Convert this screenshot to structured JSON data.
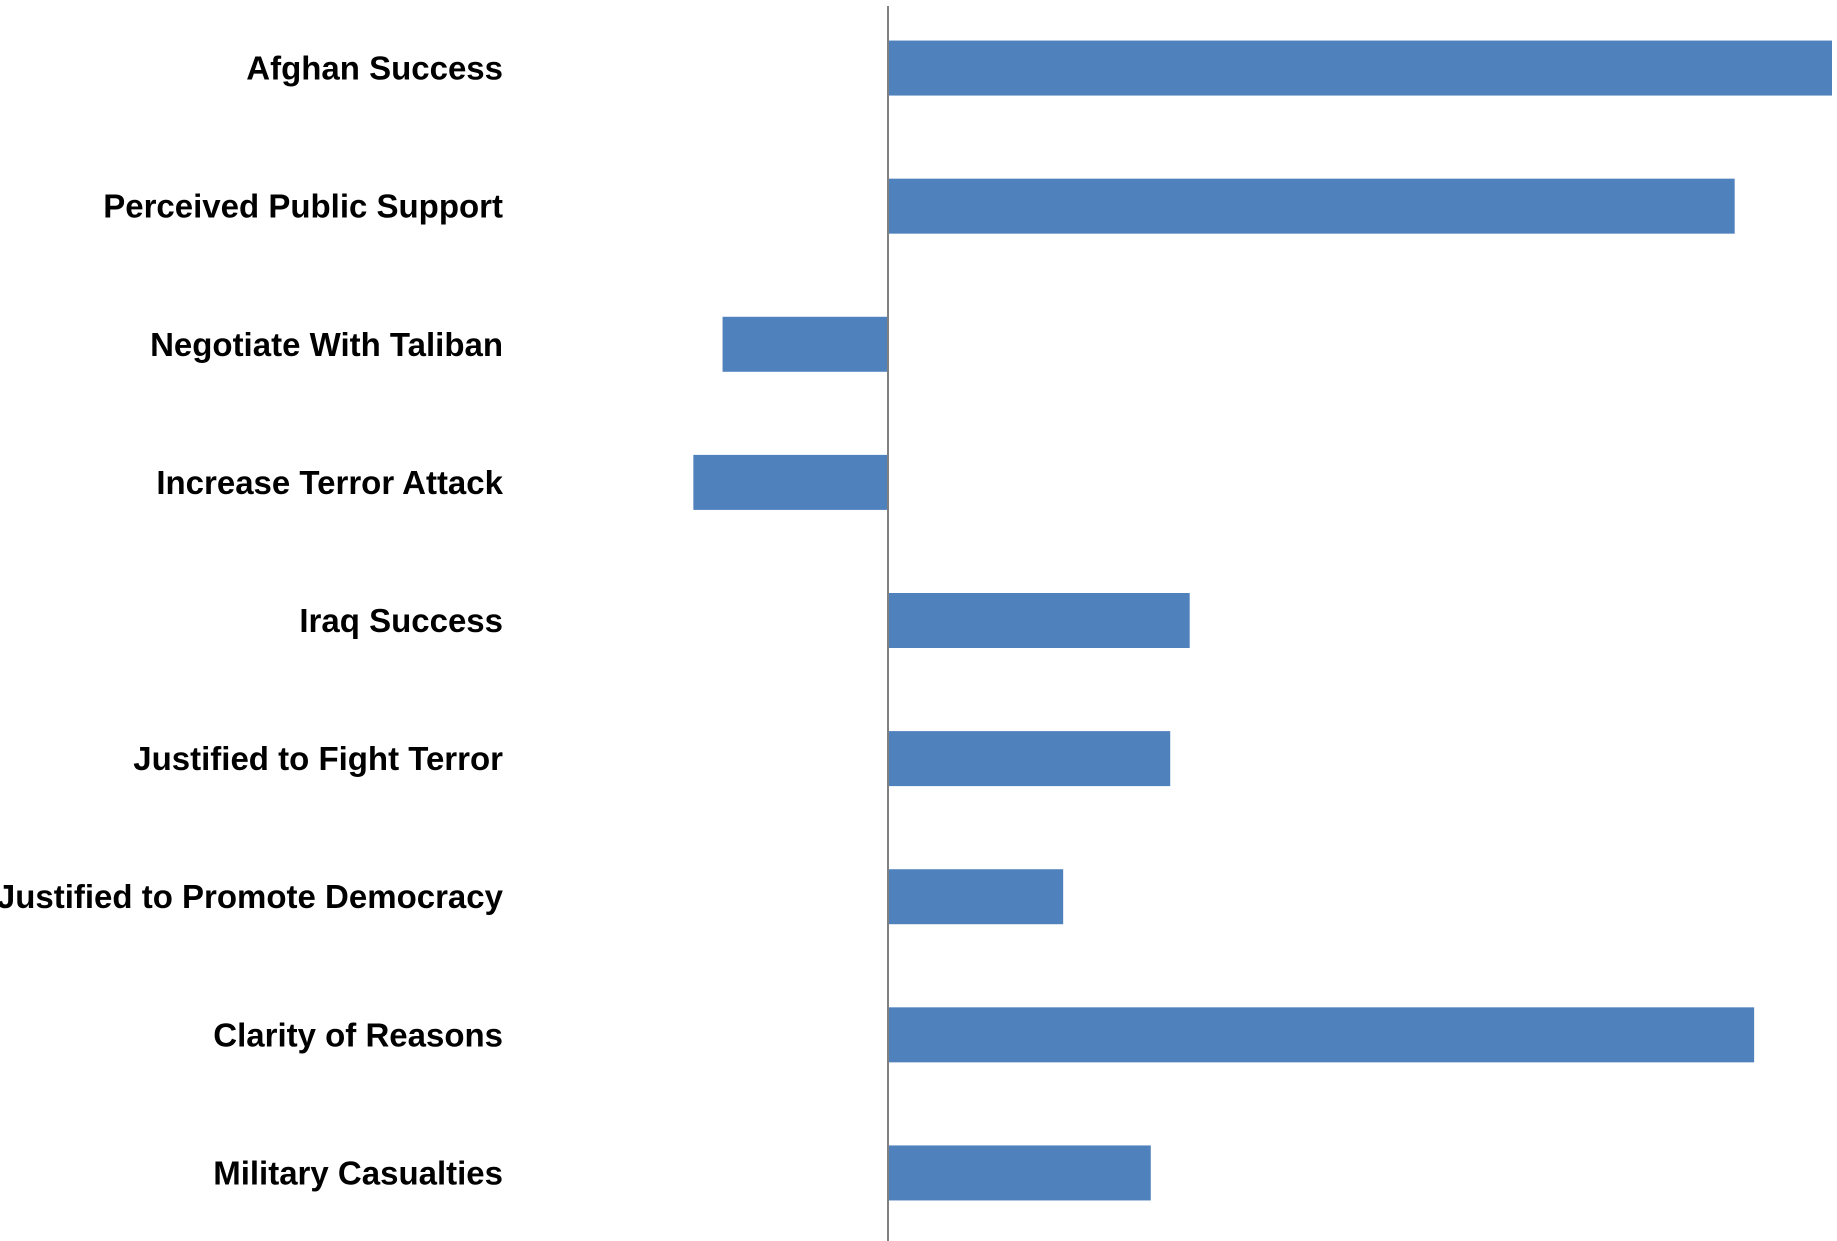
{
  "chart_data": {
    "type": "bar",
    "orientation": "horizontal",
    "title": "",
    "xlabel": "",
    "ylabel": "",
    "categories": [
      "Afghan Success",
      "Perceived Public Support",
      "Negotiate With Taliban",
      "Increase Terror Attack",
      "Iraq Success",
      "Justified to Fight Terror",
      "Justified to Promote Democracy",
      "Clarity of Reasons",
      "Military Casualties"
    ],
    "values": [
      0.97,
      0.87,
      -0.17,
      -0.2,
      0.31,
      0.29,
      0.18,
      0.89,
      0.27
    ],
    "xlim": [
      -0.91,
      0.97
    ],
    "bar_color": "#4F81BD",
    "axis_color": "#808080",
    "grid": false,
    "legend": "none",
    "x_tick_labels": false
  }
}
